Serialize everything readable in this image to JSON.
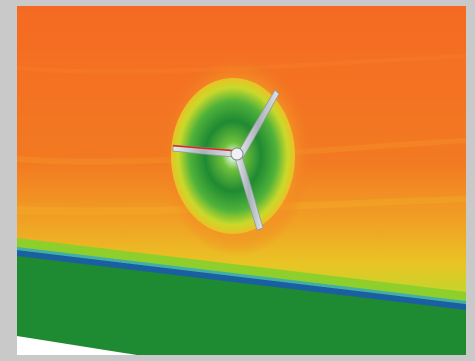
{
  "figure": {
    "subject": "wind-turbine-flow-field",
    "colors": {
      "frame": "#c9c9c9",
      "far_field": "#f26e22",
      "wake_inner": "#1f8a32",
      "wake_mid": "#d9dc2a",
      "ground": "#1e8a32",
      "ground_line": "#1b5fa3",
      "baseline": "#ffffff",
      "blade": "#bfc7cc",
      "blade_edge_red": "#e0251b"
    }
  }
}
